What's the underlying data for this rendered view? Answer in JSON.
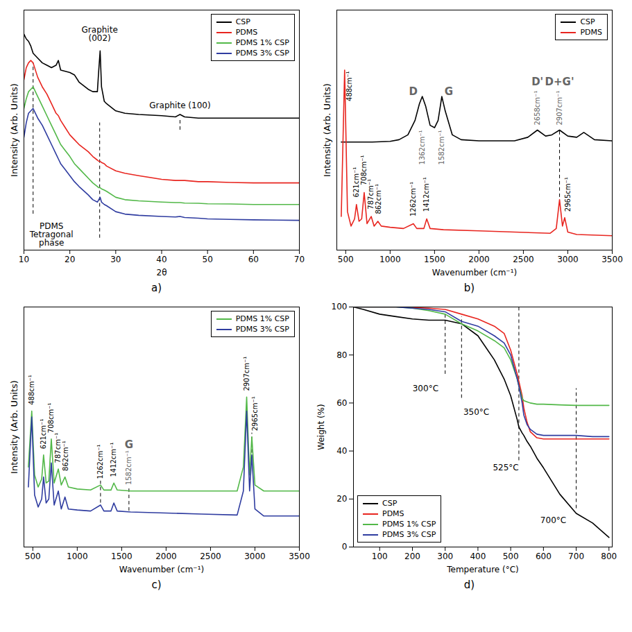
{
  "chart_data": [
    {
      "type": "line",
      "caption": "a)",
      "xlabel": "2θ",
      "ylabel": "Intensity (Arb. Units)",
      "xlim": [
        10,
        70
      ],
      "ylim": [
        0,
        100
      ],
      "xticks": [
        10,
        20,
        30,
        40,
        50,
        60,
        70
      ],
      "tick_labels": "x",
      "legend": "upper right",
      "x": [
        10,
        10.5,
        11,
        11.5,
        12,
        13,
        14,
        15,
        16,
        17,
        17.5,
        18,
        19,
        20,
        21,
        22,
        24,
        25,
        26,
        26.3,
        26.6,
        26.9,
        27.5,
        28,
        30,
        32,
        35,
        40,
        43,
        44,
        45,
        48,
        50,
        55,
        60,
        65,
        70
      ],
      "series": [
        {
          "name": "CSP",
          "color": "#000000",
          "values": [
            90,
            88,
            87,
            85,
            82,
            80,
            78,
            77,
            76,
            77,
            79,
            75,
            74.5,
            74,
            73,
            70,
            67,
            66,
            66,
            75,
            83,
            68,
            62,
            61,
            58,
            57,
            56.5,
            56,
            55.5,
            56.5,
            55.5,
            55,
            55,
            55,
            55,
            55,
            55
          ]
        },
        {
          "name": "PDMS",
          "color": "#e8251f",
          "values": [
            71,
            76,
            78,
            79,
            78,
            72,
            68,
            65,
            61,
            57,
            56,
            54,
            51,
            48,
            46,
            44,
            41,
            39,
            37.5,
            37,
            37,
            36.5,
            36,
            35,
            33,
            32,
            31,
            29.5,
            29,
            29,
            29,
            28.5,
            28.5,
            28.2,
            28,
            28,
            28
          ]
        },
        {
          "name": "PDMS 1% CSP",
          "color": "#52b848",
          "values": [
            59,
            63,
            66,
            67,
            68,
            64,
            60,
            56,
            52,
            48,
            46,
            44,
            41.5,
            39,
            36,
            34,
            30,
            28,
            26.5,
            26,
            26,
            25.5,
            25,
            24.5,
            22,
            21,
            20.5,
            20,
            19.8,
            19.8,
            19.6,
            19.5,
            19.3,
            19.2,
            19,
            19,
            19
          ]
        },
        {
          "name": "PDMS 3% CSP",
          "color": "#2f3ca0",
          "values": [
            47,
            53,
            57,
            58,
            59,
            55,
            52,
            48,
            44,
            40,
            38,
            36,
            33.5,
            31,
            28.5,
            26.5,
            23,
            21,
            20,
            21,
            22,
            20,
            19,
            18.5,
            16,
            15,
            14.5,
            14,
            13.8,
            14,
            13.6,
            13.3,
            13,
            12.8,
            12.6,
            12.5,
            12.4
          ]
        }
      ],
      "annotations": [
        {
          "text": "Graphite (002)",
          "x": 26.5,
          "y": 87,
          "color": "#000000"
        },
        {
          "text": "Graphite (100)",
          "x": 44,
          "y": 59,
          "color": "#000000"
        },
        {
          "text": "PDMS Tetragonal phase",
          "x": 16,
          "y": 2,
          "color": "#000000"
        }
      ],
      "vlines": [
        {
          "x": 12,
          "y1": 15,
          "y2": 78
        },
        {
          "x": 26.5,
          "y1": 5,
          "y2": 53
        },
        {
          "x": 44,
          "y1": 50,
          "y2": 55
        }
      ]
    },
    {
      "type": "line",
      "caption": "b)",
      "xlabel": "Wavenumber (cm⁻¹)",
      "ylabel": "Intensity (Arb. Units)",
      "xlim": [
        400,
        3500
      ],
      "ylim": [
        0,
        100
      ],
      "xticks": [
        500,
        1000,
        1500,
        2000,
        2500,
        3000,
        3500
      ],
      "tick_labels": "x",
      "legend": "upper right",
      "series": [
        {
          "name": "CSP",
          "color": "#000000",
          "x": [
            450,
            600,
            800,
            1000,
            1100,
            1200,
            1280,
            1330,
            1362,
            1400,
            1450,
            1500,
            1540,
            1582,
            1620,
            1700,
            1800,
            2000,
            2200,
            2400,
            2550,
            2658,
            2750,
            2820,
            2907,
            3000,
            3100,
            3180,
            3300,
            3500
          ],
          "values": [
            45,
            45,
            45,
            45.3,
            46,
            48,
            54,
            61,
            64,
            60,
            52,
            51,
            54,
            64,
            58,
            48,
            46,
            45.5,
            45.5,
            45.5,
            47,
            50,
            47.5,
            48,
            50,
            47.5,
            47,
            49,
            46,
            45.5
          ]
        },
        {
          "name": "PDMS",
          "color": "#e8251f",
          "x": [
            450,
            488,
            520,
            560,
            600,
            621,
            650,
            680,
            708,
            740,
            787,
            820,
            862,
            900,
            1000,
            1150,
            1262,
            1300,
            1380,
            1412,
            1450,
            1600,
            2000,
            2400,
            2800,
            2870,
            2907,
            2940,
            2965,
            3000,
            3100,
            3500
          ],
          "values": [
            14,
            75,
            16,
            10,
            13,
            19,
            12,
            13,
            24,
            11,
            14,
            10,
            12,
            10,
            9.5,
            9,
            11,
            9,
            9,
            13,
            9,
            8.5,
            8,
            7.5,
            7,
            9,
            21,
            10,
            13.5,
            7.5,
            6.5,
            6
          ]
        }
      ],
      "peak_labels": [
        {
          "text": "488cm⁻¹",
          "x": 540,
          "y": 62,
          "color": "#000000"
        },
        {
          "text": "621cm⁻¹",
          "x": 621,
          "y": 22,
          "color": "#000000"
        },
        {
          "text": "708cm⁻¹",
          "x": 708,
          "y": 27,
          "color": "#000000"
        },
        {
          "text": "787cm⁻¹",
          "x": 787,
          "y": 17,
          "color": "#000000"
        },
        {
          "text": "862cm⁻¹",
          "x": 870,
          "y": 15,
          "color": "#000000"
        },
        {
          "text": "1262cm⁻¹",
          "x": 1262,
          "y": 14,
          "color": "#000000"
        },
        {
          "text": "1412cm⁻¹",
          "x": 1412,
          "y": 16,
          "color": "#000000"
        },
        {
          "text": "2658cm⁻¹",
          "x": 2658,
          "y": 52,
          "color": "#666666"
        },
        {
          "text": "2907cm⁻¹",
          "x": 2907,
          "y": 52,
          "color": "#666666"
        },
        {
          "text": "2965cm⁻¹",
          "x": 3000,
          "y": 16,
          "color": "#000000"
        }
      ],
      "peak_labels_below": [
        {
          "text": "1362cm⁻¹",
          "x": 1362,
          "y": 50,
          "color": "#666666"
        },
        {
          "text": "1582cm⁻¹",
          "x": 1582,
          "y": 50,
          "color": "#666666"
        }
      ],
      "band_labels": [
        {
          "text": "D",
          "x": 1260,
          "y": 66,
          "color": "#666666"
        },
        {
          "text": "G",
          "x": 1660,
          "y": 66,
          "color": "#666666"
        },
        {
          "text": "D'",
          "x": 2658,
          "y": 70,
          "color": "#666666"
        },
        {
          "text": "D+G'",
          "x": 2907,
          "y": 70,
          "color": "#666666"
        }
      ],
      "vlines": [
        {
          "x": 2907,
          "y1": 22,
          "y2": 50
        }
      ]
    },
    {
      "type": "line",
      "caption": "c)",
      "xlabel": "Wavenumber (cm⁻¹)",
      "ylabel": "Intensity (Arb. Units)",
      "xlim": [
        400,
        3500
      ],
      "ylim": [
        0,
        120
      ],
      "xticks": [
        500,
        1000,
        1500,
        2000,
        2500,
        3000,
        3500
      ],
      "tick_labels": "x",
      "legend": "upper right",
      "x": [
        450,
        488,
        520,
        560,
        600,
        621,
        650,
        680,
        708,
        740,
        787,
        820,
        862,
        900,
        1000,
        1150,
        1262,
        1300,
        1380,
        1412,
        1450,
        1600,
        2000,
        2400,
        2800,
        2870,
        2907,
        2940,
        2965,
        3000,
        3100,
        3500
      ],
      "series": [
        {
          "name": "PDMS 1% CSP",
          "color": "#52b848",
          "values": [
            40,
            68,
            36,
            30,
            34,
            46,
            32,
            33,
            54,
            32,
            39,
            31,
            35,
            30,
            29,
            28.5,
            31,
            28.5,
            28.5,
            32,
            28.5,
            28,
            28,
            28,
            28,
            40,
            75,
            36,
            55,
            31,
            28,
            28
          ]
        },
        {
          "name": "PDMS 3% CSP",
          "color": "#2f3ca0",
          "values": [
            30,
            65,
            26,
            20,
            24,
            35,
            22,
            24,
            42,
            21,
            28,
            19,
            25,
            19,
            18.5,
            18,
            21,
            18,
            18,
            22,
            18,
            17.5,
            17,
            16.5,
            16,
            28,
            68,
            28,
            46,
            19,
            15.5,
            15.5
          ]
        }
      ],
      "peak_labels": [
        {
          "text": "488cm⁻¹",
          "x": 488,
          "y": 71,
          "color": "#000000"
        },
        {
          "text": "621cm⁻¹",
          "x": 621,
          "y": 49,
          "color": "#000000"
        },
        {
          "text": "708cm⁻¹",
          "x": 708,
          "y": 57,
          "color": "#000000"
        },
        {
          "text": "787cm⁻¹",
          "x": 787,
          "y": 42,
          "color": "#000000"
        },
        {
          "text": "862cm⁻¹",
          "x": 870,
          "y": 38,
          "color": "#000000"
        },
        {
          "text": "1262cm⁻¹",
          "x": 1262,
          "y": 34,
          "color": "#000000"
        },
        {
          "text": "1412cm⁻¹",
          "x": 1412,
          "y": 35,
          "color": "#000000"
        },
        {
          "text": "1582cm⁻¹",
          "x": 1582,
          "y": 31,
          "color": "#666666"
        },
        {
          "text": "2907cm⁻¹",
          "x": 2907,
          "y": 78,
          "color": "#000000"
        },
        {
          "text": "2965cm⁻¹",
          "x": 3000,
          "y": 58,
          "color": "#000000"
        }
      ],
      "band_labels": [
        {
          "text": "G",
          "x": 1582,
          "y": 51,
          "color": "#666666"
        }
      ],
      "vlines": [
        {
          "x": 1262,
          "y1": 22,
          "y2": 33
        },
        {
          "x": 1582,
          "y1": 18,
          "y2": 30
        },
        {
          "x": 2965,
          "y1": 47,
          "y2": 57
        }
      ]
    },
    {
      "type": "line",
      "caption": "d)",
      "xlabel": "Temperature (°C)",
      "ylabel": "Weight (%)",
      "xlim": [
        20,
        810
      ],
      "ylim": [
        0,
        100
      ],
      "xticks": [
        100,
        200,
        300,
        400,
        500,
        600,
        700,
        800
      ],
      "yticks": [
        0,
        20,
        40,
        60,
        80,
        100
      ],
      "legend": "lower left",
      "x": [
        20,
        50,
        100,
        150,
        200,
        250,
        300,
        350,
        400,
        450,
        480,
        500,
        520,
        525,
        535,
        540,
        550,
        560,
        580,
        600,
        650,
        700,
        750,
        800
      ],
      "series": [
        {
          "name": "CSP",
          "color": "#000000",
          "values": [
            100,
            99,
            97,
            96,
            95,
            94.5,
            94.5,
            93,
            88,
            78,
            70,
            63,
            53,
            50,
            47.5,
            46.5,
            44,
            42,
            37,
            33,
            22,
            14,
            10,
            4
          ]
        },
        {
          "name": "PDMS",
          "color": "#e8251f",
          "values": [
            100,
            100,
            100,
            100,
            99.8,
            99.5,
            99,
            97,
            95,
            92,
            89,
            82,
            72,
            69,
            63,
            58,
            52,
            48,
            45.5,
            45,
            45,
            45,
            45,
            45
          ]
        },
        {
          "name": "PDMS 1% CSP",
          "color": "#52b848",
          "values": [
            100,
            100,
            100,
            100,
            99.5,
            98.5,
            97,
            93,
            90,
            86,
            83,
            78,
            70,
            67,
            62,
            61,
            60.5,
            60,
            59.5,
            59.5,
            59.2,
            59,
            59,
            59
          ]
        },
        {
          "name": "PDMS 3% CSP",
          "color": "#2f3ca0",
          "values": [
            100,
            100,
            100,
            100,
            99.5,
            99,
            98,
            94,
            92,
            88,
            85,
            80,
            70,
            67,
            60,
            55,
            51,
            49,
            47,
            46.5,
            46.5,
            46.5,
            46,
            46
          ]
        }
      ],
      "annotations": [
        {
          "text": "300°C",
          "x": 240,
          "y": 65,
          "color": "#000000"
        },
        {
          "text": "350°C",
          "x": 395,
          "y": 55,
          "color": "#000000"
        },
        {
          "text": "525°C",
          "x": 485,
          "y": 32,
          "color": "#000000"
        },
        {
          "text": "700°C",
          "x": 630,
          "y": 10,
          "color": "#000000"
        }
      ],
      "vlines": [
        {
          "x": 300,
          "y1": 72,
          "y2": 97
        },
        {
          "x": 350,
          "y1": 62,
          "y2": 96
        },
        {
          "x": 525,
          "y1": 36,
          "y2": 100
        },
        {
          "x": 700,
          "y1": 16,
          "y2": 66
        }
      ]
    }
  ]
}
